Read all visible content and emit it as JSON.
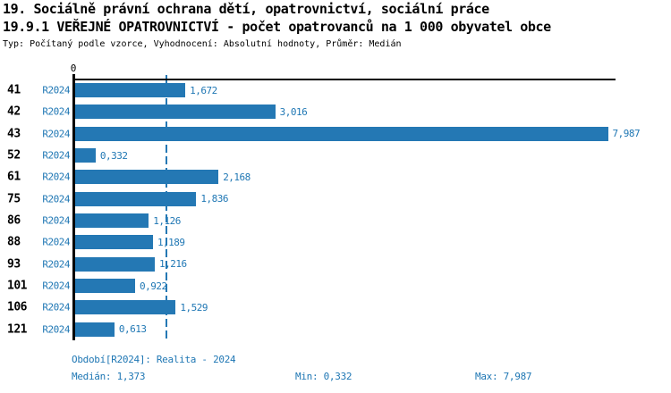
{
  "header": {
    "title_line1": "19. Sociálně právní ochrana dětí, opatrovnictví, sociální práce",
    "title_line2": "19.9.1 VEŘEJNÉ OPATROVNICTVÍ - počet opatrovanců na 1 000 obyvatel obce",
    "subtitle": "Typ: Počítaný podle vzorce, Vyhodnocení: Absolutní hodnoty, Průměr: Medián"
  },
  "chart_data": {
    "type": "bar",
    "orientation": "horizontal",
    "title": "19.9.1 VEŘEJNÉ OPATROVNICTVÍ - počet opatrovanců na 1 000 obyvatel obce",
    "categories": [
      "41",
      "42",
      "43",
      "52",
      "61",
      "75",
      "86",
      "88",
      "93",
      "101",
      "106",
      "121"
    ],
    "series_label": "R2024",
    "values": [
      1.672,
      3.016,
      7.987,
      0.332,
      2.168,
      1.836,
      1.126,
      1.189,
      1.216,
      0.922,
      1.529,
      0.613
    ],
    "value_labels": [
      "1,672",
      "3,016",
      "7,987",
      "0,332",
      "2,168",
      "1,836",
      "1,126",
      "1,189",
      "1,216",
      "0,922",
      "1,529",
      "0,613"
    ],
    "axis_tick_zero": "0",
    "xlim": [
      0,
      8.02
    ],
    "median_value": 1.373,
    "grid": false,
    "legend": "none"
  },
  "colors": {
    "bar": "#2478b4",
    "blue_text": "#1f77b4",
    "axis": "#000000",
    "background": "#ffffff"
  },
  "footer": {
    "period": "Období[R2024]: Realita - 2024",
    "median": "Medián: 1,373",
    "min": "Min: 0,332",
    "max": "Max: 7,987"
  }
}
